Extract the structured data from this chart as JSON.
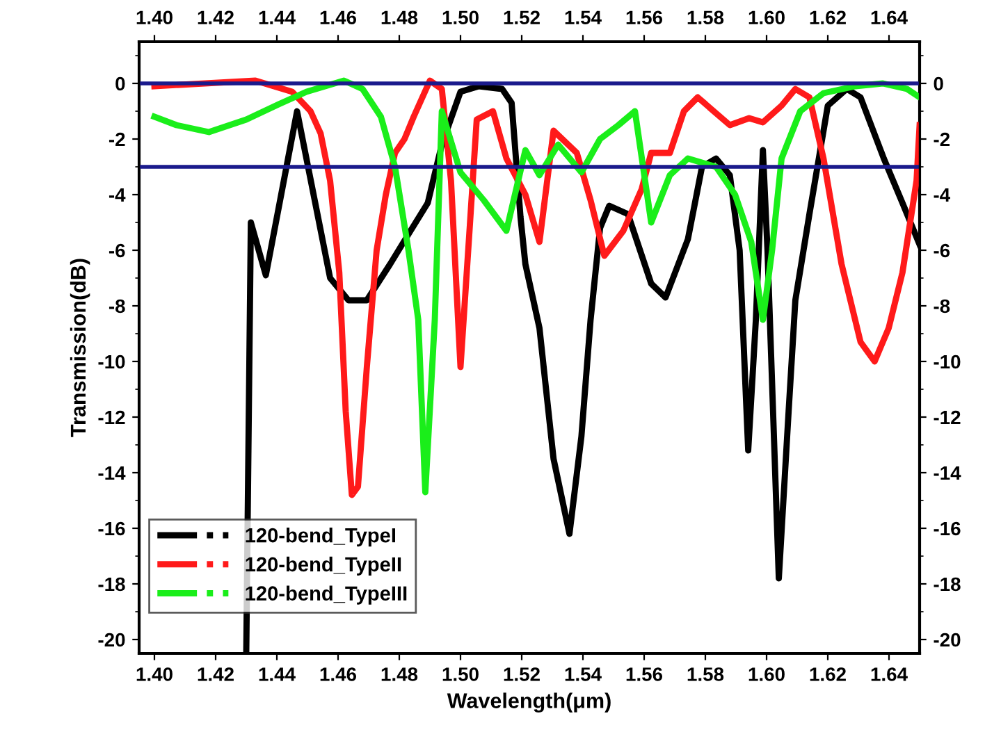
{
  "chart_data": {
    "type": "line",
    "xlabel": "Wavelength(μm)",
    "ylabel": "Transmission(dB)",
    "xlim": [
      1.395,
      1.65
    ],
    "ylim": [
      -20.5,
      1.5
    ],
    "x2lim": [
      1.395,
      1.65
    ],
    "y2lim": [
      -20.5,
      1.5
    ],
    "xticks": [
      {
        "value": 1.4,
        "label": "1.40"
      },
      {
        "value": 1.42,
        "label": "1.42"
      },
      {
        "value": 1.44,
        "label": "1.44"
      },
      {
        "value": 1.46,
        "label": "1.46"
      },
      {
        "value": 1.48,
        "label": "1.48"
      },
      {
        "value": 1.5,
        "label": "1.50"
      },
      {
        "value": 1.52,
        "label": "1.52"
      },
      {
        "value": 1.54,
        "label": "1.54"
      },
      {
        "value": 1.56,
        "label": "1.56"
      },
      {
        "value": 1.58,
        "label": "1.58"
      },
      {
        "value": 1.6,
        "label": "1.60"
      },
      {
        "value": 1.62,
        "label": "1.62"
      },
      {
        "value": 1.64,
        "label": "1.64"
      }
    ],
    "x2ticks": [
      {
        "value": 1.4,
        "label": "1.40"
      },
      {
        "value": 1.42,
        "label": "1.42"
      },
      {
        "value": 1.44,
        "label": "1.44"
      },
      {
        "value": 1.46,
        "label": "1.46"
      },
      {
        "value": 1.48,
        "label": "1.48"
      },
      {
        "value": 1.5,
        "label": "1.50"
      },
      {
        "value": 1.52,
        "label": "1.52"
      },
      {
        "value": 1.54,
        "label": "1.54"
      },
      {
        "value": 1.56,
        "label": "1.56"
      },
      {
        "value": 1.58,
        "label": "1.58"
      },
      {
        "value": 1.6,
        "label": "1.60"
      },
      {
        "value": 1.62,
        "label": "1.62"
      },
      {
        "value": 1.64,
        "label": "1.64"
      }
    ],
    "yticks": [
      0,
      -2,
      -4,
      -6,
      -8,
      -10,
      -12,
      -14,
      -16,
      -18,
      -20
    ],
    "y2ticks": [
      0,
      -2,
      -4,
      -6,
      -8,
      -10,
      -12,
      -14,
      -16,
      -18,
      -20
    ],
    "grid": false,
    "legend": "bottom left",
    "marker": "none",
    "line_style": "solid",
    "ref_lines": [
      {
        "axis": "y",
        "value": 0,
        "color": "#1a1a8c"
      },
      {
        "axis": "y",
        "value": -3,
        "color": "#1a1a8c"
      }
    ],
    "series": [
      {
        "name": "120-bend_TypeI",
        "color": "#000000",
        "x": [
          1.43,
          1.4315,
          1.4364,
          1.4466,
          1.4574,
          1.4634,
          1.4694,
          1.477,
          1.482,
          1.4893,
          1.4939,
          1.5,
          1.506,
          1.5136,
          1.5167,
          1.5196,
          1.5212,
          1.5258,
          1.5304,
          1.5356,
          1.5395,
          1.5425,
          1.5456,
          1.5486,
          1.5547,
          1.5623,
          1.567,
          1.5743,
          1.5789,
          1.5835,
          1.588,
          1.5912,
          1.594,
          1.5965,
          1.5988,
          1.6003,
          1.604,
          1.6072,
          1.6094,
          1.614,
          1.62,
          1.6262,
          1.6307,
          1.6383,
          1.6444,
          1.65
        ],
        "values": [
          -20.5,
          -5.0,
          -6.9,
          -1.0,
          -7.0,
          -7.8,
          -7.8,
          -6.5,
          -5.6,
          -4.3,
          -2.2,
          -0.3,
          -0.1,
          -0.2,
          -0.7,
          -4.8,
          -6.5,
          -8.8,
          -13.5,
          -16.2,
          -12.7,
          -8.5,
          -5.2,
          -4.4,
          -4.7,
          -7.2,
          -7.7,
          -5.6,
          -3.0,
          -2.7,
          -3.3,
          -6.0,
          -13.2,
          -8.5,
          -2.4,
          -6.0,
          -17.8,
          -11.8,
          -7.8,
          -4.7,
          -0.8,
          -0.2,
          -0.5,
          -2.7,
          -4.3,
          -5.8
        ]
      },
      {
        "name": "120-bend_TypeII",
        "color": "#ff1a1a",
        "x": [
          1.4,
          1.433,
          1.445,
          1.451,
          1.4543,
          1.4574,
          1.4604,
          1.4625,
          1.4645,
          1.4665,
          1.4694,
          1.4726,
          1.4756,
          1.4786,
          1.4817,
          1.4847,
          1.49,
          1.4939,
          1.4969,
          1.5,
          1.503,
          1.5053,
          1.5106,
          1.515,
          1.5212,
          1.5258,
          1.5304,
          1.538,
          1.5425,
          1.547,
          1.5532,
          1.5592,
          1.5623,
          1.5684,
          1.573,
          1.5775,
          1.588,
          1.5943,
          1.5988,
          1.6049,
          1.6094,
          1.614,
          1.6186,
          1.6245,
          1.6307,
          1.6353,
          1.6399,
          1.6444,
          1.649,
          1.65
        ],
        "values": [
          -0.1,
          0.1,
          -0.3,
          -1.0,
          -1.8,
          -3.5,
          -6.8,
          -11.8,
          -14.8,
          -14.5,
          -10.2,
          -6.0,
          -4.0,
          -2.5,
          -2.0,
          -1.2,
          0.1,
          -0.2,
          -3.5,
          -10.2,
          -5.2,
          -1.3,
          -1.0,
          -2.7,
          -4.0,
          -5.7,
          -1.7,
          -2.5,
          -4.2,
          -6.2,
          -5.3,
          -3.8,
          -2.5,
          -2.5,
          -1.0,
          -0.5,
          -1.5,
          -1.25,
          -1.4,
          -0.8,
          -0.2,
          -0.5,
          -2.7,
          -6.5,
          -9.3,
          -10.0,
          -8.8,
          -6.8,
          -3.5,
          -1.5
        ]
      },
      {
        "name": "120-bend_TypeIII",
        "color": "#1aee1a",
        "x": [
          1.4,
          1.4072,
          1.4178,
          1.43,
          1.4406,
          1.4497,
          1.4619,
          1.468,
          1.474,
          1.4786,
          1.483,
          1.4862,
          1.4885,
          1.4916,
          1.4939,
          1.5,
          1.5076,
          1.515,
          1.5212,
          1.5258,
          1.5319,
          1.5395,
          1.5456,
          1.5516,
          1.557,
          1.5623,
          1.5684,
          1.5743,
          1.5835,
          1.5897,
          1.595,
          1.5988,
          1.6018,
          1.6049,
          1.611,
          1.6186,
          1.629,
          1.638,
          1.6459,
          1.65
        ],
        "values": [
          -1.2,
          -1.5,
          -1.75,
          -1.3,
          -0.75,
          -0.3,
          0.1,
          -0.2,
          -1.2,
          -3.0,
          -6.0,
          -8.5,
          -14.7,
          -8.5,
          -1.0,
          -3.2,
          -4.2,
          -5.3,
          -2.4,
          -3.3,
          -2.2,
          -3.2,
          -2.0,
          -1.5,
          -1.0,
          -5.0,
          -3.3,
          -2.7,
          -3.0,
          -4.0,
          -5.7,
          -8.5,
          -6.0,
          -2.7,
          -1.0,
          -0.35,
          -0.1,
          0.0,
          -0.2,
          -0.5
        ]
      }
    ]
  }
}
